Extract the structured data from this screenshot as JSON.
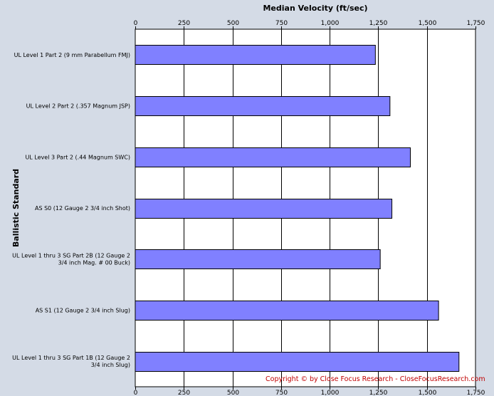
{
  "chart_data": {
    "type": "bar",
    "orientation": "horizontal",
    "title": "Median Velocity (ft/sec)",
    "ylabel": "Ballistic Standard",
    "xlim": [
      0,
      1750
    ],
    "ticks": [
      "0",
      "250",
      "500",
      "750",
      "1,000",
      "1,250",
      "1,500",
      "1,750"
    ],
    "tick_values": [
      0,
      250,
      500,
      750,
      1000,
      1250,
      1500,
      1750
    ],
    "tick_positions": [
      "top",
      "bottom"
    ],
    "grid": true,
    "bar_color": "#8080ff",
    "plot_background": "#ffffff",
    "categories": [
      [
        "UL Level 1 Part 2 (9 mm Parabellum FMJ)"
      ],
      [
        "UL Level 2 Part 2 (.357 Magnum JSP)"
      ],
      [
        "UL Level 3 Part 2 (.44 Magnum SWC)"
      ],
      [
        "AS S0 (12 Gauge 2 3/4 inch Shot)"
      ],
      [
        "UL Level 1 thru 3 SG Part 2B (12 Gauge 2",
        "3/4 inch Mag. # 00 Buck)"
      ],
      [
        "AS S1 (12 Gauge 2 3/4 inch Slug)"
      ],
      [
        "UL Level 1 thru 3 SG Part 1B (12 Gauge 2",
        "3/4 inch Slug)"
      ]
    ],
    "values": [
      1235,
      1310,
      1415,
      1320,
      1260,
      1560,
      1665
    ]
  },
  "copyright": "Copyright © by  Close Focus Research - CloseFocusResearch.com",
  "copyright_color": "#c00000"
}
